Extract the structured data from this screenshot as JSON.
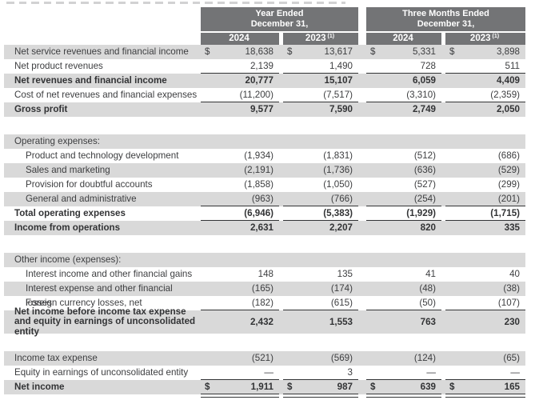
{
  "colors": {
    "header_bg": "#737476",
    "row_stripe": "#d9d9d9",
    "text": "#3d3e40",
    "rule": "#333436",
    "header_text": "#ffffff"
  },
  "table": {
    "currency_symbol": "$",
    "footnote_marker": "(1)",
    "period_groups": [
      {
        "title_line1": "Year Ended",
        "title_line2": "December 31,",
        "year1": "2024",
        "year2": "2023"
      },
      {
        "title_line1": "Three Months Ended",
        "title_line2": "December 31,",
        "year1": "2024",
        "year2": "2023"
      }
    ],
    "rows": [
      {
        "label": "Net service revenues and financial income",
        "v": [
          "18,638",
          "13,617",
          "5,331",
          "3,898"
        ],
        "dollar": true,
        "shade": true
      },
      {
        "label": "Net product revenues",
        "v": [
          "2,139",
          "1,490",
          "728",
          "511"
        ],
        "rule": true
      },
      {
        "label": "Net revenues and financial income",
        "v": [
          "20,777",
          "15,107",
          "6,059",
          "4,409"
        ],
        "bold": true,
        "shade": true
      },
      {
        "label": "Cost of net revenues and financial expenses",
        "v": [
          "(11,200)",
          "(7,517)",
          "(3,310)",
          "(2,359)"
        ],
        "rule": true
      },
      {
        "label": "Gross profit",
        "v": [
          "9,577",
          "7,590",
          "2,749",
          "2,050"
        ],
        "bold": true,
        "shade": true
      },
      {
        "label": "Operating expenses:",
        "v": [
          "",
          "",
          "",
          ""
        ],
        "shade": true,
        "gap_before": true
      },
      {
        "label": "Product and technology development",
        "v": [
          "(1,934)",
          "(1,831)",
          "(512)",
          "(686)"
        ],
        "indent": true
      },
      {
        "label": "Sales and marketing",
        "v": [
          "(2,191)",
          "(1,736)",
          "(636)",
          "(529)"
        ],
        "indent": true,
        "shade": true
      },
      {
        "label": "Provision for doubtful accounts",
        "v": [
          "(1,858)",
          "(1,050)",
          "(527)",
          "(299)"
        ],
        "indent": true
      },
      {
        "label": "General and administrative",
        "v": [
          "(963)",
          "(766)",
          "(254)",
          "(201)"
        ],
        "indent": true,
        "shade": true,
        "rule": true
      },
      {
        "label": "Total operating expenses",
        "v": [
          "(6,946)",
          "(5,383)",
          "(1,929)",
          "(1,715)"
        ],
        "bold": true,
        "rule": true
      },
      {
        "label": "Income from operations",
        "v": [
          "2,631",
          "2,207",
          "820",
          "335"
        ],
        "bold": true,
        "shade": true
      },
      {
        "label": "Other income (expenses):",
        "v": [
          "",
          "",
          "",
          ""
        ],
        "shade": true,
        "gap_before": true
      },
      {
        "label": "Interest income and other financial gains",
        "v": [
          "148",
          "135",
          "41",
          "40"
        ],
        "indent": true
      },
      {
        "label": "Interest expense and other financial losses",
        "v": [
          "(165)",
          "(174)",
          "(48)",
          "(38)"
        ],
        "indent": true,
        "shade": true
      },
      {
        "label": "Foreign currency losses, net",
        "v": [
          "(182)",
          "(615)",
          "(50)",
          "(107)"
        ],
        "indent": true,
        "rule": true
      },
      {
        "label": "Net income before income tax expense and equity in earnings of unconsolidated entity",
        "v": [
          "2,432",
          "1,553",
          "763",
          "230"
        ],
        "bold": true,
        "shade": true,
        "tall": true
      },
      {
        "label": "Income tax expense",
        "v": [
          "(521)",
          "(569)",
          "(124)",
          "(65)"
        ],
        "shade": true,
        "gap_before": true
      },
      {
        "label": "Equity in earnings of unconsolidated entity",
        "v": [
          "—",
          "3",
          "—",
          "—"
        ],
        "rule": true
      },
      {
        "label": "Net income",
        "v": [
          "1,911",
          "987",
          "639",
          "165"
        ],
        "bold": true,
        "shade": true,
        "dollar": true,
        "drule": true
      }
    ]
  }
}
